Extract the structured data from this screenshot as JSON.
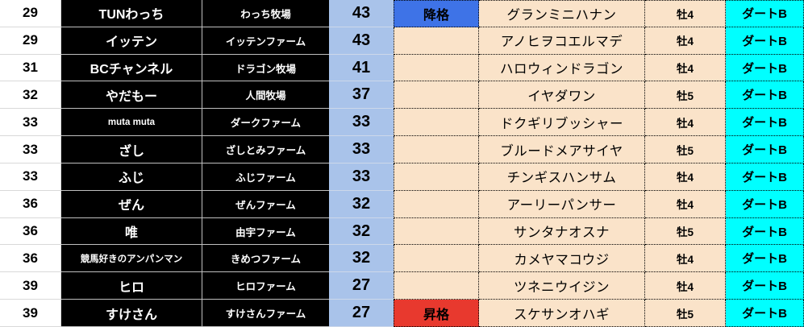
{
  "table_name": "ranking-standings",
  "legend": {
    "demote_label": "降格",
    "promote_label": "昇格"
  },
  "columns": [
    {
      "key": "rank",
      "name": "rank-cell"
    },
    {
      "key": "name",
      "name": "player-name-cell"
    },
    {
      "key": "farm",
      "name": "farm-cell"
    },
    {
      "key": "score",
      "name": "score-cell"
    },
    {
      "key": "status",
      "name": "status-cell"
    },
    {
      "key": "horse",
      "name": "horse-name-cell"
    },
    {
      "key": "sex",
      "name": "sex-age-cell"
    },
    {
      "key": "cls",
      "name": "class-cell"
    }
  ],
  "rows": [
    {
      "rank": "29",
      "name": "TUNわっち",
      "farm": "わっち牧場",
      "score": "43",
      "status": "降格",
      "horse": "グランミニハナン",
      "sex": "牡4",
      "cls": "ダートB"
    },
    {
      "rank": "29",
      "name": "イッテン",
      "farm": "イッテンファーム",
      "score": "43",
      "status": "",
      "horse": "アノヒヲコエルマデ",
      "sex": "牡4",
      "cls": "ダートB"
    },
    {
      "rank": "31",
      "name": "BCチャンネル",
      "farm": "ドラゴン牧場",
      "score": "41",
      "status": "",
      "horse": "ハロウィンドラゴン",
      "sex": "牡4",
      "cls": "ダートB"
    },
    {
      "rank": "32",
      "name": "やだもー",
      "farm": "人間牧場",
      "score": "37",
      "status": "",
      "horse": "イヤダワン",
      "sex": "牡5",
      "cls": "ダートB"
    },
    {
      "rank": "33",
      "name": "muta muta",
      "farm": "ダークファーム",
      "score": "33",
      "status": "",
      "horse": "ドクギリブッシャー",
      "sex": "牡4",
      "cls": "ダートB"
    },
    {
      "rank": "33",
      "name": "ざし",
      "farm": "ざしとみファーム",
      "score": "33",
      "status": "",
      "horse": "ブルードメアサイヤ",
      "sex": "牡5",
      "cls": "ダートB"
    },
    {
      "rank": "33",
      "name": "ふじ",
      "farm": "ふじファーム",
      "score": "33",
      "status": "",
      "horse": "チンギスハンサム",
      "sex": "牡4",
      "cls": "ダートB"
    },
    {
      "rank": "36",
      "name": "ぜん",
      "farm": "ぜんファーム",
      "score": "32",
      "status": "",
      "horse": "アーリーパンサー",
      "sex": "牡4",
      "cls": "ダートB"
    },
    {
      "rank": "36",
      "name": "唯",
      "farm": "由宇ファーム",
      "score": "32",
      "status": "",
      "horse": "サンタナオスナ",
      "sex": "牡5",
      "cls": "ダートB"
    },
    {
      "rank": "36",
      "name": "競馬好きのアンパンマン",
      "farm": "きめつファーム",
      "score": "32",
      "status": "",
      "horse": "カメヤマコウジ",
      "sex": "牡4",
      "cls": "ダートB"
    },
    {
      "rank": "39",
      "name": "ヒロ",
      "farm": "ヒロファーム",
      "score": "27",
      "status": "",
      "horse": "ツネニウイジン",
      "sex": "牡4",
      "cls": "ダートB"
    },
    {
      "rank": "39",
      "name": "すけさん",
      "farm": "すけさんファーム",
      "score": "27",
      "status": "昇格",
      "horse": "スケサンオハギ",
      "sex": "牡5",
      "cls": "ダートB"
    }
  ],
  "colors": {
    "score_bg": "#A9C3EA",
    "score_line": "#CDD8EA",
    "cream_bg": "#FAE3C9",
    "demote_bg": "#3E73E7",
    "promote_bg": "#E8392E",
    "class_bg": "#00FFFF",
    "cell_black": "#000000",
    "grid_light": "#D9D9D9",
    "grid_mid": "#BFBFBF"
  }
}
